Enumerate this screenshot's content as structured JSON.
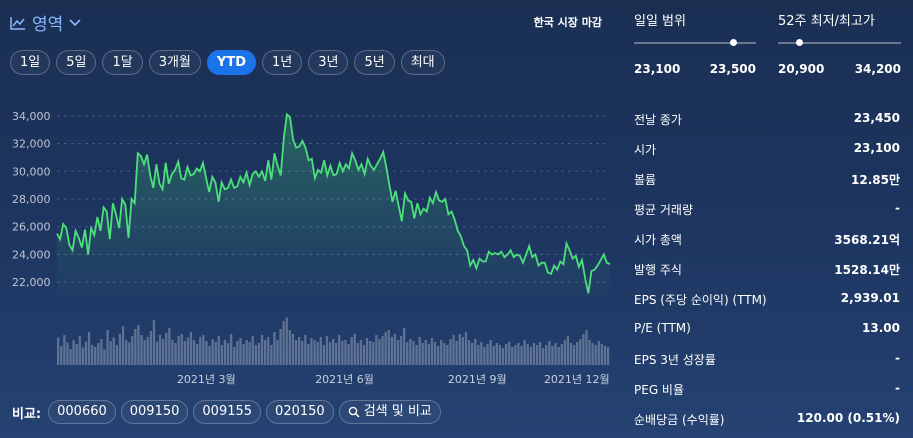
{
  "header": {
    "area_label": "영역",
    "market_status": "한국 시장 마감"
  },
  "ranges": [
    "1일",
    "5일",
    "1달",
    "3개월",
    "YTD",
    "1년",
    "3년",
    "5년",
    "최대"
  ],
  "active_range": "YTD",
  "chart_data": {
    "type": "area",
    "y_ticks": [
      "34,000",
      "32,000",
      "30,000",
      "28,000",
      "26,000",
      "24,000",
      "22,000"
    ],
    "x_ticks": [
      "2021년 3월",
      "2021년 6월",
      "2021년 9월",
      "2021년 12월"
    ],
    "ylim": [
      20500,
      35500
    ],
    "grid": true,
    "color": "#4be07a",
    "price": [
      25500,
      25100,
      26200,
      25900,
      24700,
      24300,
      25700,
      25200,
      24500,
      25800,
      24000,
      25900,
      25400,
      26700,
      25700,
      27400,
      27100,
      25100,
      27700,
      26900,
      25900,
      28000,
      27600,
      25200,
      28000,
      27700,
      31300,
      31100,
      30500,
      31200,
      29700,
      28800,
      30500,
      29100,
      28700,
      30600,
      29100,
      29800,
      30100,
      30700,
      29500,
      29400,
      30300,
      29700,
      29800,
      30200,
      30000,
      30600,
      29500,
      28500,
      29600,
      29200,
      27800,
      29200,
      28700,
      28800,
      29400,
      28800,
      28900,
      29600,
      29200,
      29900,
      29000,
      29800,
      30000,
      29600,
      30000,
      29300,
      30800,
      29400,
      31300,
      30400,
      29700,
      32400,
      34100,
      33900,
      32300,
      31700,
      31800,
      32200,
      31700,
      30800,
      30900,
      29500,
      30100,
      29900,
      30800,
      29700,
      30400,
      29700,
      29800,
      30600,
      30000,
      30500,
      30200,
      31300,
      30800,
      30100,
      30500,
      29800,
      30900,
      30400,
      30100,
      30500,
      30900,
      31400,
      30300,
      29000,
      27800,
      28600,
      27500,
      26400,
      28400,
      27900,
      27800,
      26600,
      27700,
      26900,
      27300,
      27100,
      28100,
      27700,
      28500,
      27900,
      27800,
      28000,
      26900,
      27100,
      26500,
      25700,
      25300,
      24600,
      24300,
      23200,
      23600,
      23000,
      23700,
      23500,
      23500,
      24200,
      24000,
      24100,
      24000,
      24200,
      23800,
      24000,
      24300,
      23800,
      24000,
      23900,
      23400,
      24000,
      24600,
      23800,
      24000,
      23200,
      23400,
      23400,
      22700,
      22600,
      23200,
      22900,
      23500,
      23300,
      24800,
      24300,
      23700,
      23900,
      23100,
      23600,
      22300,
      21200,
      22800,
      22900,
      23200,
      23600,
      24000,
      23400,
      23300
    ],
    "volume": [
      0.55,
      0.38,
      0.6,
      0.45,
      0.32,
      0.5,
      0.42,
      0.58,
      0.35,
      0.47,
      0.66,
      0.4,
      0.36,
      0.44,
      0.52,
      0.31,
      0.7,
      0.48,
      0.55,
      0.4,
      0.62,
      0.78,
      0.5,
      0.45,
      0.58,
      0.72,
      0.8,
      0.6,
      0.5,
      0.56,
      0.68,
      0.9,
      0.47,
      0.6,
      0.52,
      0.64,
      0.74,
      0.5,
      0.44,
      0.58,
      0.62,
      0.48,
      0.55,
      0.66,
      0.5,
      0.42,
      0.56,
      0.6,
      0.48,
      0.38,
      0.52,
      0.46,
      0.58,
      0.4,
      0.5,
      0.44,
      0.62,
      0.36,
      0.48,
      0.54,
      0.42,
      0.5,
      0.46,
      0.58,
      0.4,
      0.44,
      0.6,
      0.5,
      0.56,
      0.4,
      0.66,
      0.5,
      0.72,
      0.88,
      0.95,
      0.7,
      0.62,
      0.5,
      0.56,
      0.48,
      0.6,
      0.42,
      0.54,
      0.5,
      0.46,
      0.56,
      0.4,
      0.58,
      0.46,
      0.52,
      0.44,
      0.6,
      0.48,
      0.5,
      0.42,
      0.56,
      0.62,
      0.44,
      0.5,
      0.4,
      0.54,
      0.48,
      0.46,
      0.6,
      0.52,
      0.58,
      0.66,
      0.7,
      0.56,
      0.62,
      0.5,
      0.58,
      0.74,
      0.46,
      0.52,
      0.48,
      0.4,
      0.56,
      0.44,
      0.5,
      0.42,
      0.54,
      0.46,
      0.38,
      0.5,
      0.44,
      0.4,
      0.52,
      0.6,
      0.48,
      0.62,
      0.56,
      0.66,
      0.5,
      0.44,
      0.52,
      0.4,
      0.46,
      0.36,
      0.42,
      0.5,
      0.38,
      0.44,
      0.4,
      0.34,
      0.42,
      0.46,
      0.36,
      0.4,
      0.44,
      0.38,
      0.5,
      0.42,
      0.36,
      0.44,
      0.4,
      0.46,
      0.34,
      0.4,
      0.48,
      0.38,
      0.44,
      0.36,
      0.42,
      0.5,
      0.58,
      0.44,
      0.4,
      0.46,
      0.52,
      0.62,
      0.7,
      0.5,
      0.44,
      0.4,
      0.48,
      0.42,
      0.38,
      0.36
    ]
  },
  "compare": {
    "label": "비교:",
    "tickers": [
      "000660",
      "009150",
      "009155",
      "020150"
    ],
    "search_label": "검색 및 비교"
  },
  "day_range": {
    "title": "일일 범위",
    "low": "23,100",
    "high": "23,500",
    "position": 0.81
  },
  "week52_range": {
    "title": "52주 최저/최고가",
    "low": "20,900",
    "high": "34,200",
    "position": 0.17
  },
  "stats": [
    {
      "label": "전날 종가",
      "value": "23,450"
    },
    {
      "label": "시가",
      "value": "23,100"
    },
    {
      "label": "볼륨",
      "value": "12.85만"
    },
    {
      "label": "평균 거래량",
      "value": "-"
    },
    {
      "label": "시가 총액",
      "value": "3568.21억"
    },
    {
      "label": "발행 주식",
      "value": "1528.14만"
    },
    {
      "label": "EPS (주당 순이익) (TTM)",
      "value": "2,939.01"
    },
    {
      "label": "P/E (TTM)",
      "value": "13.00"
    },
    {
      "label": "EPS 3년 성장률",
      "value": "-"
    },
    {
      "label": "PEG 비율",
      "value": "-"
    },
    {
      "label": "순배당금 (수익률)",
      "value": "120.00 (0.51%)"
    }
  ]
}
